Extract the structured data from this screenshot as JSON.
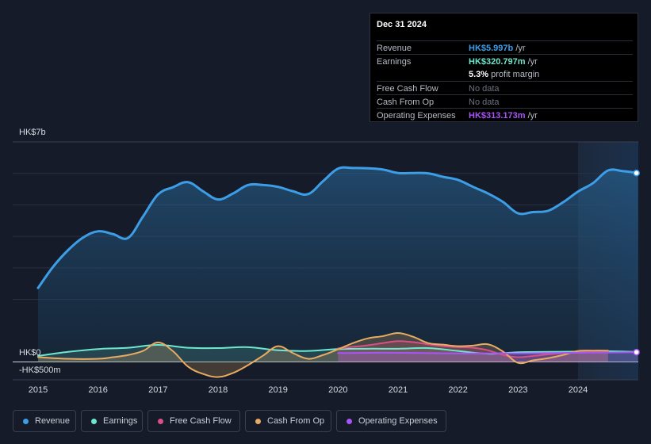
{
  "tooltip": {
    "date": "Dec 31 2024",
    "rows": [
      {
        "label": "Revenue",
        "value": "HK$5.997b",
        "unit": "/yr",
        "color": "#3d9ee8"
      },
      {
        "label": "Earnings",
        "value": "HK$320.797m",
        "unit": "/yr",
        "color": "#6ee7cf"
      },
      {
        "label": "",
        "value": "5.3%",
        "unit": "profit margin",
        "color": "#ffffff"
      },
      {
        "label": "Free Cash Flow",
        "value": "",
        "unit": "No data",
        "color": "#6c7280"
      },
      {
        "label": "Cash From Op",
        "value": "",
        "unit": "No data",
        "color": "#6c7280"
      },
      {
        "label": "Operating Expenses",
        "value": "HK$313.173m",
        "unit": "/yr",
        "color": "#a855f7"
      }
    ]
  },
  "legend": [
    {
      "label": "Revenue",
      "color": "#3d9ee8"
    },
    {
      "label": "Earnings",
      "color": "#6ee7cf"
    },
    {
      "label": "Free Cash Flow",
      "color": "#d94f86"
    },
    {
      "label": "Cash From Op",
      "color": "#e8ab62"
    },
    {
      "label": "Operating Expenses",
      "color": "#a855f7"
    }
  ],
  "chart_data": {
    "type": "line",
    "y_unit": "HK$b",
    "y_tick_labels": [
      {
        "label": "HK$7b",
        "value": 7
      },
      {
        "label": "HK$0",
        "value": 0
      },
      {
        "label": "-HK$500m",
        "value": -0.5
      }
    ],
    "ylim": [
      -0.5,
      7
    ],
    "xlim": [
      2015,
      2025
    ],
    "x_tick_labels": [
      "2015",
      "2016",
      "2017",
      "2018",
      "2019",
      "2020",
      "2021",
      "2022",
      "2023",
      "2024"
    ],
    "highlight_from": 2024,
    "series": [
      {
        "name": "Revenue",
        "color": "#3d9ee8",
        "x": [
          2015,
          2015.25,
          2015.5,
          2015.75,
          2016,
          2016.25,
          2016.5,
          2016.75,
          2017,
          2017.25,
          2017.5,
          2017.75,
          2018,
          2018.25,
          2018.5,
          2018.75,
          2019,
          2019.25,
          2019.5,
          2019.75,
          2020,
          2020.25,
          2020.5,
          2020.75,
          2021,
          2021.25,
          2021.5,
          2021.75,
          2022,
          2022.25,
          2022.5,
          2022.75,
          2023,
          2023.25,
          2023.5,
          2023.75,
          2024,
          2024.25,
          2024.5,
          2024.75,
          2025
        ],
        "values": [
          2.35,
          3.02,
          3.55,
          3.95,
          4.15,
          4.06,
          3.94,
          4.62,
          5.32,
          5.55,
          5.71,
          5.42,
          5.16,
          5.35,
          5.62,
          5.62,
          5.56,
          5.42,
          5.33,
          5.74,
          6.14,
          6.16,
          6.15,
          6.11,
          6.0,
          6.0,
          5.99,
          5.88,
          5.78,
          5.56,
          5.35,
          5.08,
          4.72,
          4.76,
          4.8,
          5.07,
          5.41,
          5.68,
          6.08,
          6.06,
          6.0
        ]
      },
      {
        "name": "Earnings",
        "color": "#6ee7cf",
        "x": [
          2015,
          2015.5,
          2016,
          2016.5,
          2017,
          2017.5,
          2018,
          2018.5,
          2019,
          2019.5,
          2020,
          2020.5,
          2021,
          2021.5,
          2022,
          2022.5,
          2023,
          2023.5,
          2024,
          2024.5,
          2025
        ],
        "values": [
          0.19,
          0.32,
          0.41,
          0.45,
          0.54,
          0.45,
          0.44,
          0.47,
          0.37,
          0.35,
          0.41,
          0.42,
          0.42,
          0.44,
          0.35,
          0.26,
          0.31,
          0.32,
          0.33,
          0.34,
          0.32
        ]
      },
      {
        "name": "Free Cash Flow",
        "color": "#d94f86",
        "x": [
          2020,
          2020.25,
          2020.5,
          2020.75,
          2021,
          2021.25,
          2021.5,
          2021.75,
          2022,
          2022.25,
          2022.5,
          2022.75,
          2023,
          2023.25,
          2023.5,
          2023.75,
          2024,
          2024.25,
          2024.5
        ],
        "values": [
          0.43,
          0.48,
          0.53,
          0.6,
          0.66,
          0.63,
          0.56,
          0.5,
          0.47,
          0.45,
          0.37,
          0.22,
          0.15,
          0.19,
          0.24,
          0.28,
          0.3,
          0.32,
          0.33
        ]
      },
      {
        "name": "Cash From Op",
        "color": "#e8ab62",
        "x": [
          2015,
          2015.5,
          2016,
          2016.25,
          2016.5,
          2016.75,
          2017,
          2017.25,
          2017.5,
          2017.75,
          2018,
          2018.25,
          2018.5,
          2018.75,
          2019,
          2019.25,
          2019.5,
          2019.75,
          2020,
          2020.25,
          2020.5,
          2020.75,
          2021,
          2021.25,
          2021.5,
          2021.75,
          2022,
          2022.25,
          2022.5,
          2022.75,
          2023,
          2023.25,
          2023.5,
          2023.75,
          2024,
          2024.25,
          2024.5
        ],
        "values": [
          0.15,
          0.1,
          0.1,
          0.15,
          0.22,
          0.35,
          0.62,
          0.34,
          -0.15,
          -0.38,
          -0.48,
          -0.35,
          -0.1,
          0.2,
          0.5,
          0.28,
          0.1,
          0.22,
          0.4,
          0.6,
          0.75,
          0.82,
          0.92,
          0.8,
          0.6,
          0.55,
          0.5,
          0.52,
          0.56,
          0.33,
          -0.03,
          0.05,
          0.12,
          0.22,
          0.35,
          0.36,
          0.36
        ]
      },
      {
        "name": "Operating Expenses",
        "color": "#a855f7",
        "x": [
          2020,
          2020.5,
          2021,
          2021.5,
          2022,
          2022.5,
          2023,
          2023.5,
          2024,
          2024.5,
          2025
        ],
        "values": [
          0.28,
          0.29,
          0.29,
          0.28,
          0.27,
          0.27,
          0.27,
          0.28,
          0.29,
          0.3,
          0.31
        ]
      }
    ]
  }
}
